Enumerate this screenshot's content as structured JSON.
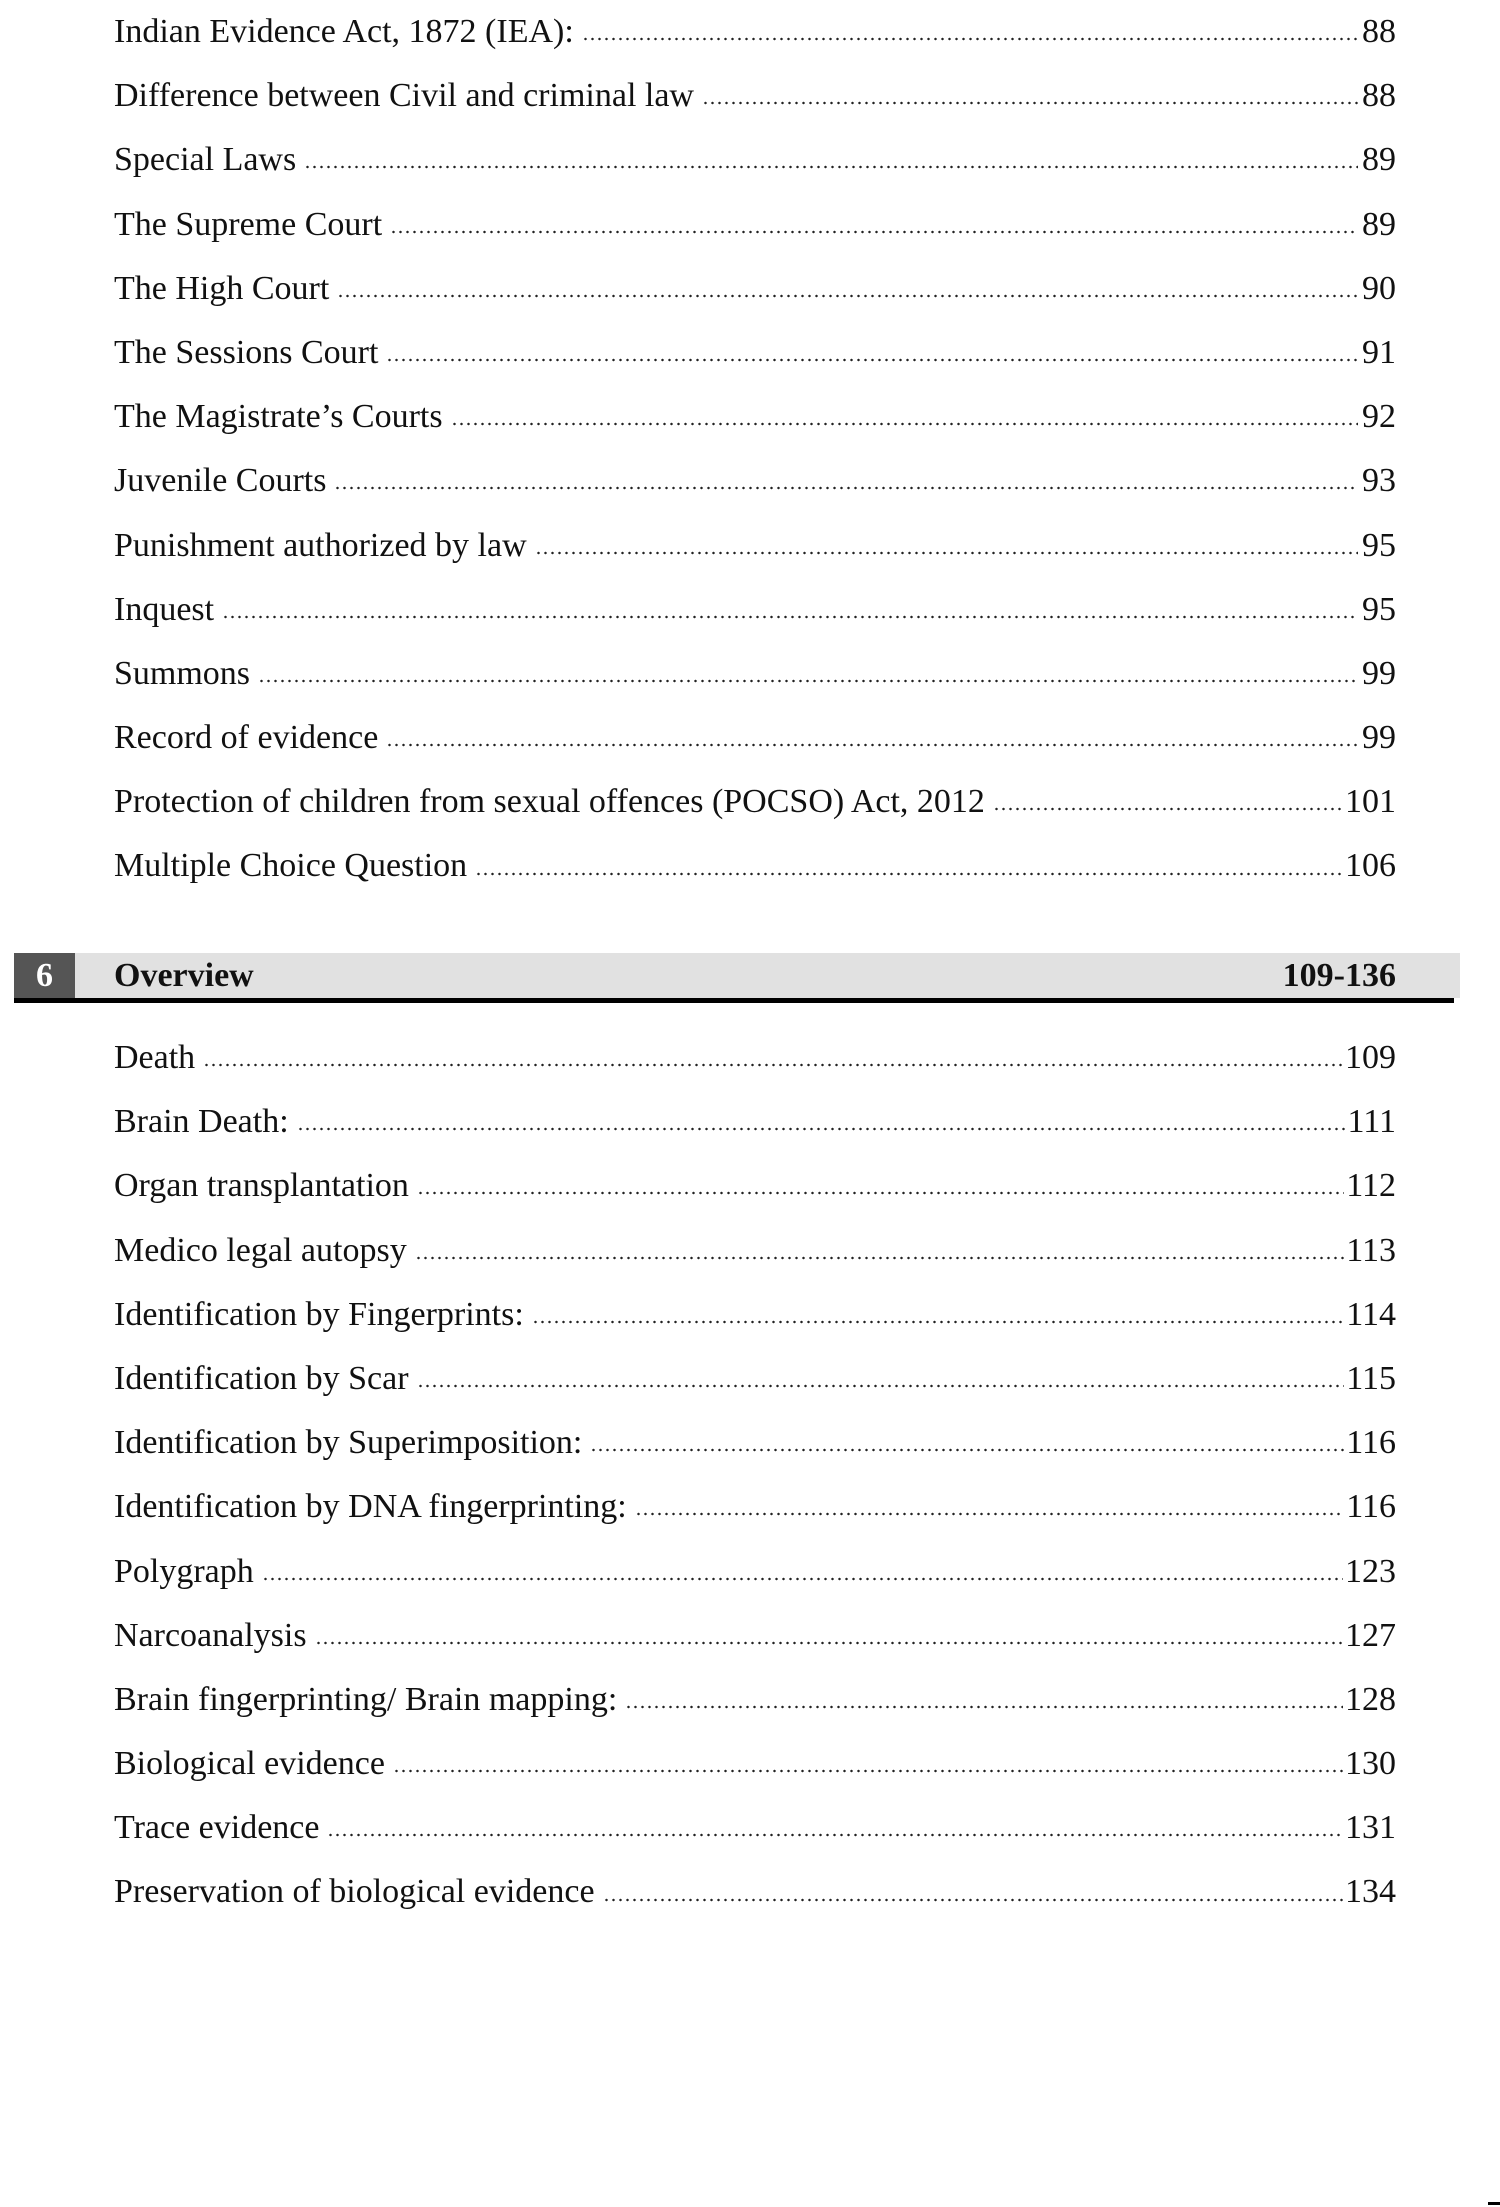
{
  "section5_entries": [
    {
      "title": "Indian Evidence Act, 1872 (IEA):",
      "page": "88"
    },
    {
      "title": "Difference between Civil and criminal law",
      "page": "88"
    },
    {
      "title": "Special Laws",
      "page": "89"
    },
    {
      "title": "The Supreme Court",
      "page": "89"
    },
    {
      "title": "The High Court",
      "page": "90"
    },
    {
      "title": "The Sessions Court",
      "page": "91"
    },
    {
      "title": "The Magistrate’s Courts",
      "page": "92"
    },
    {
      "title": "Juvenile Courts",
      "page": "93"
    },
    {
      "title": "Punishment authorized by law",
      "page": "95"
    },
    {
      "title": "Inquest",
      "page": "95"
    },
    {
      "title": "Summons",
      "page": "99"
    },
    {
      "title": "Record of evidence",
      "page": "99"
    },
    {
      "title": "Protection of children from sexual offences (POCSO) Act, 2012",
      "page": "101"
    },
    {
      "title": "Multiple Choice  Question",
      "page": "106"
    }
  ],
  "chapter": {
    "number": "6",
    "title": "Overview",
    "range": "109-136",
    "band_color": "#e1e1e1",
    "number_box_color": "#555555"
  },
  "section6_entries": [
    {
      "title": "Death",
      "page": "109"
    },
    {
      "title": "Brain Death:",
      "page": "111"
    },
    {
      "title": "Organ transplantation",
      "page": "112"
    },
    {
      "title": "Medico legal autopsy",
      "page": "113"
    },
    {
      "title": "Identification by Fingerprints:",
      "page": "114"
    },
    {
      "title": "Identification by Scar",
      "page": "115"
    },
    {
      "title": "Identification by Superimposition:",
      "page": "116"
    },
    {
      "title": "Identification by DNA fingerprinting:",
      "page": "116"
    },
    {
      "title": "Polygraph",
      "page": "123"
    },
    {
      "title": "Narcoanalysis",
      "page": "127"
    },
    {
      "title": "Brain fingerprinting/ Brain mapping:",
      "page": "128"
    },
    {
      "title": "Biological evidence",
      "page": "130"
    },
    {
      "title": "Trace evidence",
      "page": "131"
    },
    {
      "title": "Preservation of biological evidence",
      "page": "134"
    }
  ]
}
